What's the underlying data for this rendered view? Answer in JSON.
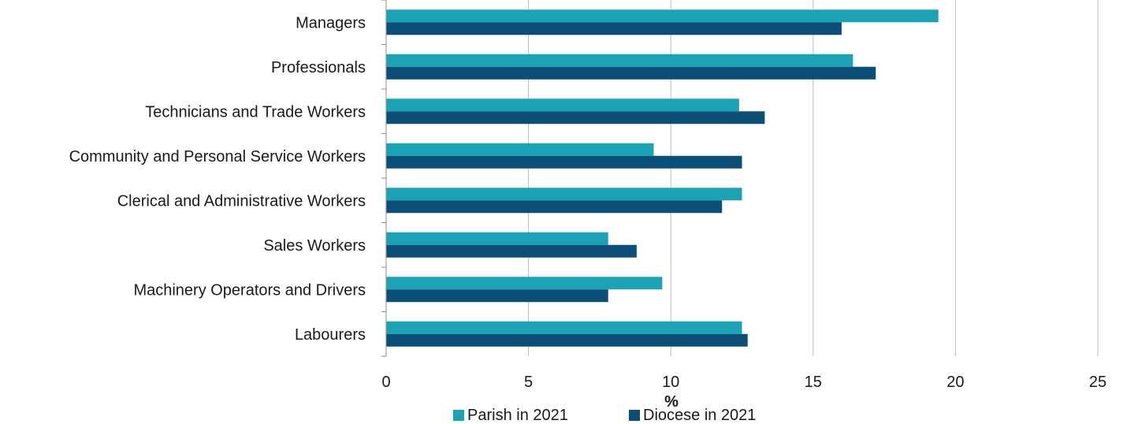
{
  "chart_data": {
    "type": "bar",
    "orientation": "horizontal",
    "categories": [
      "Managers",
      "Professionals",
      "Technicians and Trade Workers",
      "Community and Personal Service Workers",
      "Clerical and Administrative Workers",
      "Sales Workers",
      "Machinery Operators and Drivers",
      "Labourers"
    ],
    "series": [
      {
        "name": "Parish in 2021",
        "color": "#1ba3b5",
        "values": [
          19.4,
          16.4,
          12.4,
          9.4,
          12.5,
          7.8,
          9.7,
          12.5
        ]
      },
      {
        "name": "Diocese in 2021",
        "color": "#0b4f78",
        "values": [
          16.0,
          17.2,
          13.3,
          12.5,
          11.8,
          8.8,
          7.8,
          12.7
        ]
      }
    ],
    "xlabel": "%",
    "xlim": [
      0,
      25
    ],
    "xticks": [
      "0",
      "5",
      "10",
      "15",
      "20",
      "25"
    ],
    "grid": true,
    "legend_position": "bottom"
  }
}
